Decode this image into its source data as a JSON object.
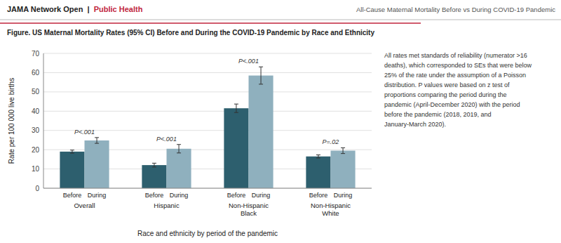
{
  "chart_data": {
    "type": "bar",
    "header": {
      "left": "JAMA Network Open  |  ",
      "highlight": {
        "text": "Public Health",
        "color": "#c0253d"
      },
      "right": "All-Cause Maternal Mortality Before vs During COVID-19 Pandemic"
    },
    "title": "Figure. US Maternal Mortality Rates (95% CI) Before and During the COVID-19 Pandemic by Race and Ethnicity",
    "ylabel": "Rate per 100 000 live births",
    "xlabel": "Race and ethnicity by period of the pandemic",
    "categories": [
      "Overall",
      "Hispanic",
      "Non-Hispanic\nBlack",
      "Non-Hispanic\nWhite"
    ],
    "series": [
      {
        "name": "Before",
        "color": "#2d5f6e",
        "values": [
          19.0,
          12.0,
          41.5,
          16.5
        ],
        "errors": [
          0.8,
          1.0,
          2.2,
          0.8
        ]
      },
      {
        "name": "During",
        "color": "#8fb0be",
        "values": [
          24.8,
          20.5,
          58.5,
          19.5
        ],
        "errors": [
          1.5,
          2.2,
          4.5,
          1.5
        ]
      }
    ],
    "pvalues": [
      "P<.001",
      "P<.001",
      "P<.001",
      "P=.02"
    ],
    "ylim": [
      0,
      70
    ],
    "yticks": [
      0,
      10,
      20,
      30,
      40,
      50,
      60,
      70
    ],
    "grid": true,
    "annotation": "All rates met standards of reliability (numerator >16\ndeaths), which corresponded to SEs that were below\n25% of the rate under the assumption of a Poisson\ndistribution. P values were based on z test of\nproportions comparing the period during the\npandemic (April-December 2020) with the period\nbefore the pandemic (2018, 2019, and\nJanuary-March 2020)."
  }
}
